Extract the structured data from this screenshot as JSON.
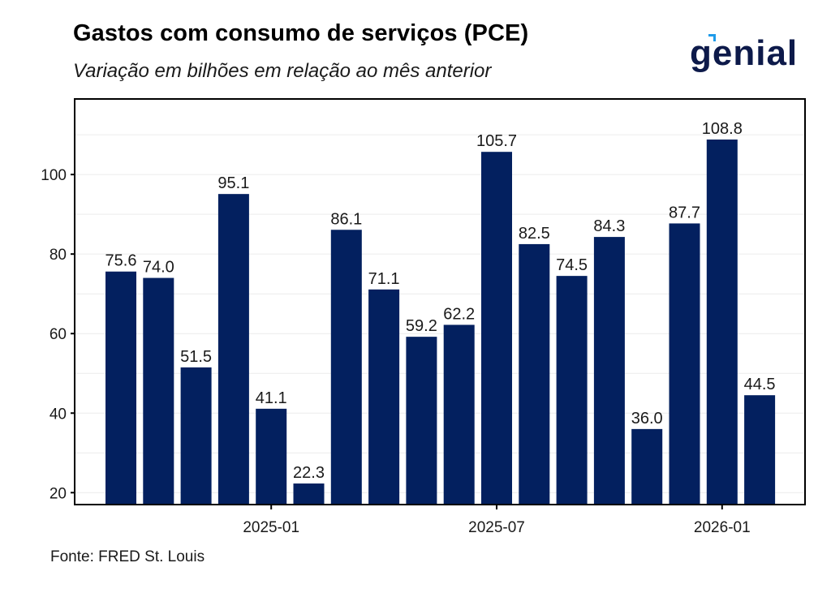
{
  "header": {
    "title": "Gastos com consumo de serviços (PCE)",
    "subtitle": "Variação em bilhões em relação ao mês anterior"
  },
  "logo": {
    "text": "genial",
    "text_color": "#0d1a4a",
    "accent_color": "#1e9be9"
  },
  "footer": {
    "source": "Fonte: FRED St. Louis"
  },
  "chart_data": {
    "type": "bar",
    "title": "Gastos com consumo de serviços (PCE)",
    "subtitle": "Variação em bilhões em relação ao mês anterior",
    "xlabel": "",
    "ylabel": "",
    "categories": [
      "2024-09",
      "2024-10",
      "2024-11",
      "2024-12",
      "2025-01",
      "2025-02",
      "2025-03",
      "2025-04",
      "2025-05",
      "2025-06",
      "2025-07",
      "2025-08",
      "2025-09",
      "2025-10",
      "2025-11",
      "2025-12",
      "2026-01",
      "2026-02"
    ],
    "values": [
      75.6,
      74.0,
      51.5,
      95.1,
      41.1,
      22.3,
      86.1,
      71.1,
      59.2,
      62.2,
      105.7,
      82.5,
      74.5,
      84.3,
      36.0,
      87.7,
      108.8,
      44.5
    ],
    "data_labels": [
      "75.6",
      "74.0",
      "51.5",
      "95.1",
      "41.1",
      "22.3",
      "86.1",
      "71.1",
      "59.2",
      "62.2",
      "105.7",
      "82.5",
      "74.5",
      "84.3",
      "36.0",
      "87.7",
      "108.8",
      "44.5"
    ],
    "x_ticks": [
      {
        "category": "2025-01",
        "label": "2025-01"
      },
      {
        "category": "2025-07",
        "label": "2025-07"
      },
      {
        "category": "2026-01",
        "label": "2026-01"
      }
    ],
    "y_ticks": [
      20,
      40,
      60,
      80,
      100
    ],
    "ylim": [
      17,
      119
    ],
    "grid": true,
    "legend": "none",
    "bar_color": "#03205f",
    "source": "Fonte: FRED St. Louis"
  }
}
